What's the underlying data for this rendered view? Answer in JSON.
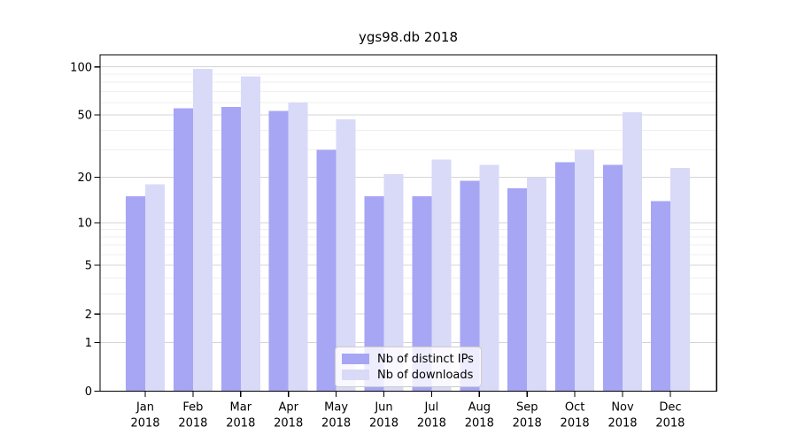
{
  "chart_data": {
    "type": "bar",
    "title": "ygs98.db 2018",
    "categories": [
      "Jan\n2018",
      "Feb\n2018",
      "Mar\n2018",
      "Apr\n2018",
      "May\n2018",
      "Jun\n2018",
      "Jul\n2018",
      "Aug\n2018",
      "Sep\n2018",
      "Oct\n2018",
      "Nov\n2018",
      "Dec\n2018"
    ],
    "series": [
      {
        "name": "Nb of distinct IPs",
        "color": "#a6a6f5",
        "values": [
          15,
          55,
          56,
          53,
          30,
          15,
          15,
          19,
          17,
          25,
          24,
          14
        ]
      },
      {
        "name": "Nb of downloads",
        "color": "#d9d9f8",
        "values": [
          18,
          97,
          87,
          60,
          47,
          21,
          26,
          24,
          20,
          30,
          52,
          23
        ]
      }
    ],
    "xlabel": "",
    "ylabel": "",
    "yscale": "log1p",
    "ylim": [
      0,
      119
    ],
    "yticks": [
      0,
      1,
      2,
      5,
      10,
      20,
      50,
      100
    ],
    "yticks_minor": [
      3,
      4,
      6,
      7,
      8,
      9,
      30,
      40,
      60,
      70,
      80,
      90
    ],
    "grid": true,
    "legend_position": "lower center inside"
  },
  "colors": {
    "grid_major": "#d4d4d4",
    "grid_minor": "#efefef",
    "spine": "#000000",
    "tick": "#000000",
    "text": "#000000",
    "legend_border": "#cccccc",
    "background": "#ffffff"
  }
}
